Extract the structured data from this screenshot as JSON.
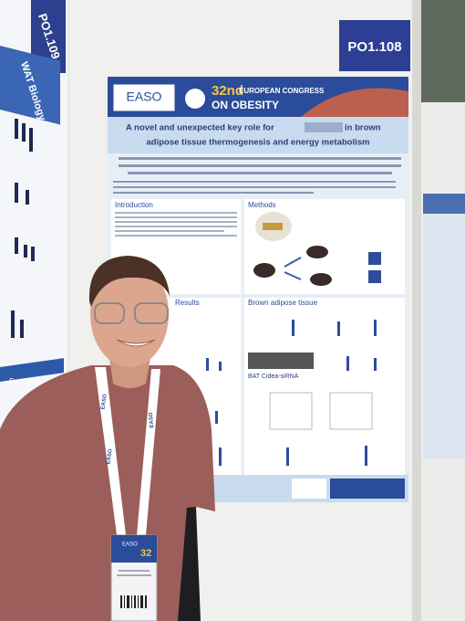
{
  "wall_labels": {
    "right": "PO1.108",
    "left": "PO1.109"
  },
  "left_poster": {
    "heading": "WAT Biology",
    "section": "Summary"
  },
  "poster": {
    "logo": "EASO",
    "congress_number": "32nd",
    "congress_name": [
      "EUROPEAN CONGRESS",
      "ON OBESITY"
    ],
    "title_lines": [
      "A novel and unexpected key role for",
      "in brown",
      "adipose tissue thermogenesis and energy metabolism"
    ],
    "sections": [
      "Introduction",
      "Methods",
      "Results",
      "Brown adipose tissue"
    ],
    "figure_label": "BAT Cidea-siRNA"
  },
  "badge": {
    "logo": "EASO",
    "number": "32"
  },
  "lanyard": "EASO"
}
